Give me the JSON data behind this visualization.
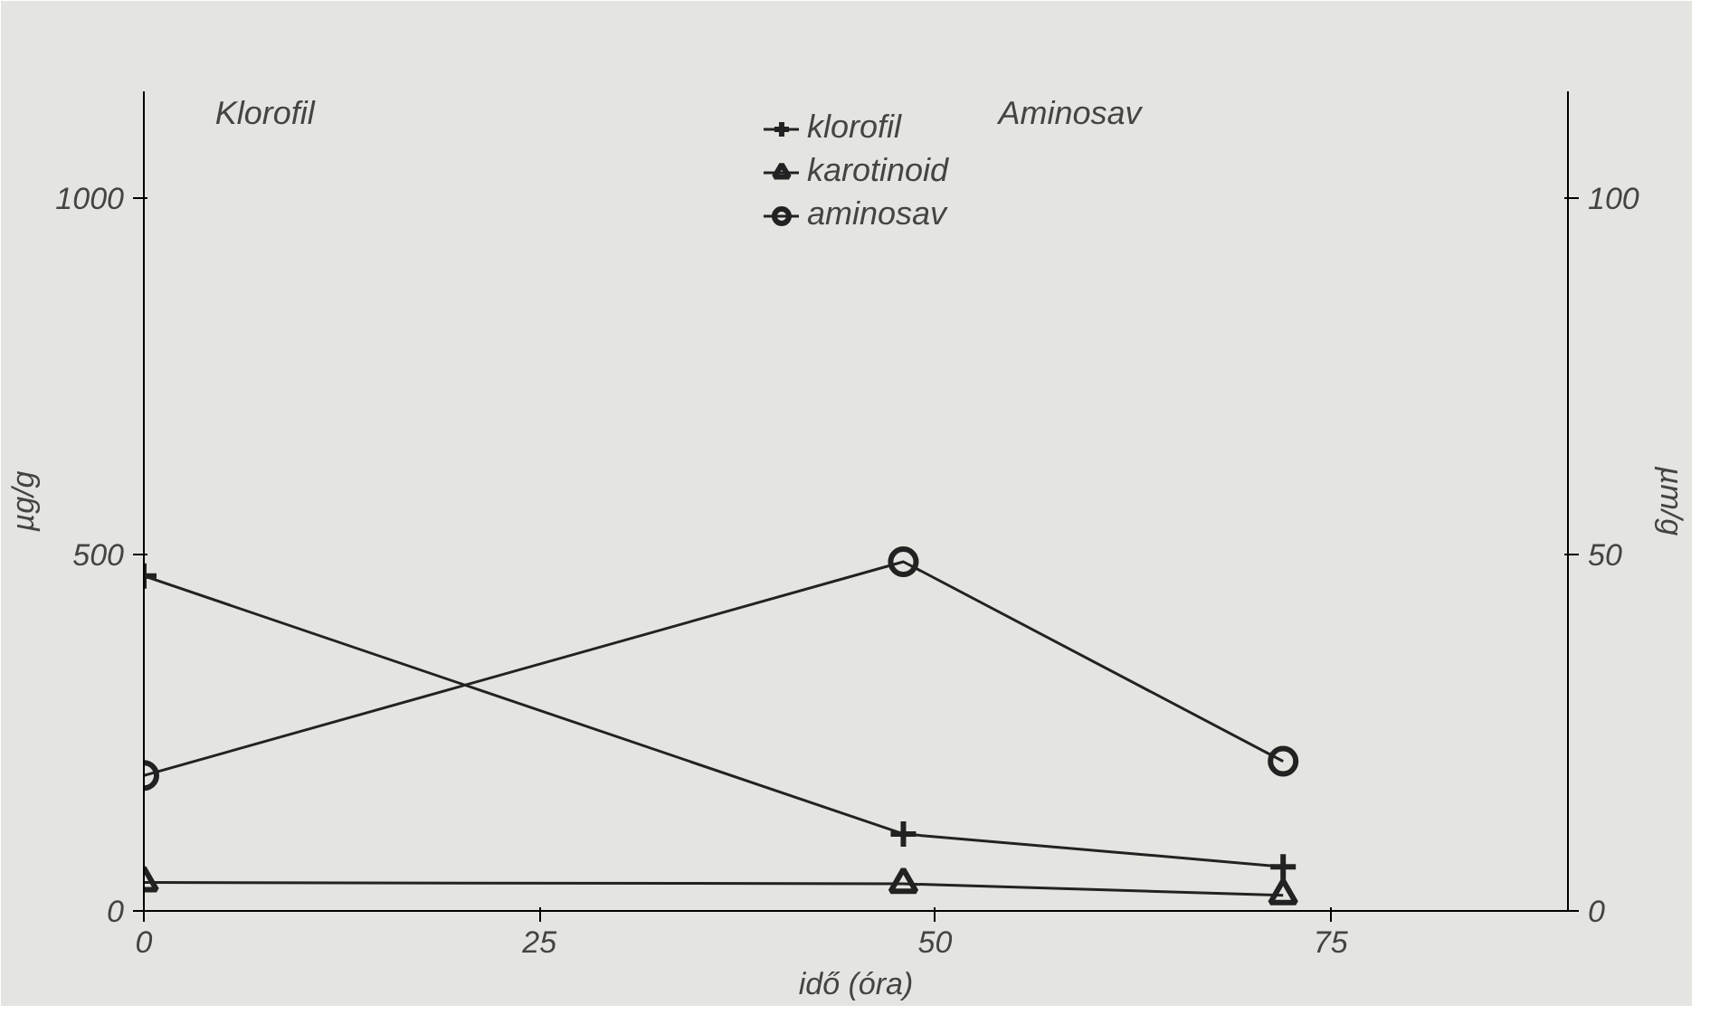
{
  "chart_data": {
    "type": "line",
    "xlabel": "idő (óra)",
    "ylabel": "µg/g",
    "y2label": "µm/g",
    "annotations": [
      "Klorofil",
      "Aminosav"
    ],
    "x": [
      0,
      48,
      72
    ],
    "series": [
      {
        "name": "klorofil",
        "color": "#222222",
        "marker": "cross",
        "values": [
          470,
          108,
          62
        ]
      },
      {
        "name": "karotinoid",
        "color": "#222222",
        "marker": "triangle",
        "values": [
          40,
          38,
          22
        ]
      },
      {
        "name": "aminosav",
        "color": "#222222",
        "marker": "circle",
        "axis": "y2",
        "values": [
          19,
          49,
          21
        ]
      }
    ],
    "xlim": [
      0,
      90
    ],
    "xticks": [
      0,
      25,
      50,
      75
    ],
    "ylim": [
      0,
      1150
    ],
    "yticks": [
      0,
      500,
      1000
    ],
    "y2lim": [
      0,
      115
    ],
    "y2ticks": [
      0,
      50,
      100
    ],
    "legend": "top"
  }
}
